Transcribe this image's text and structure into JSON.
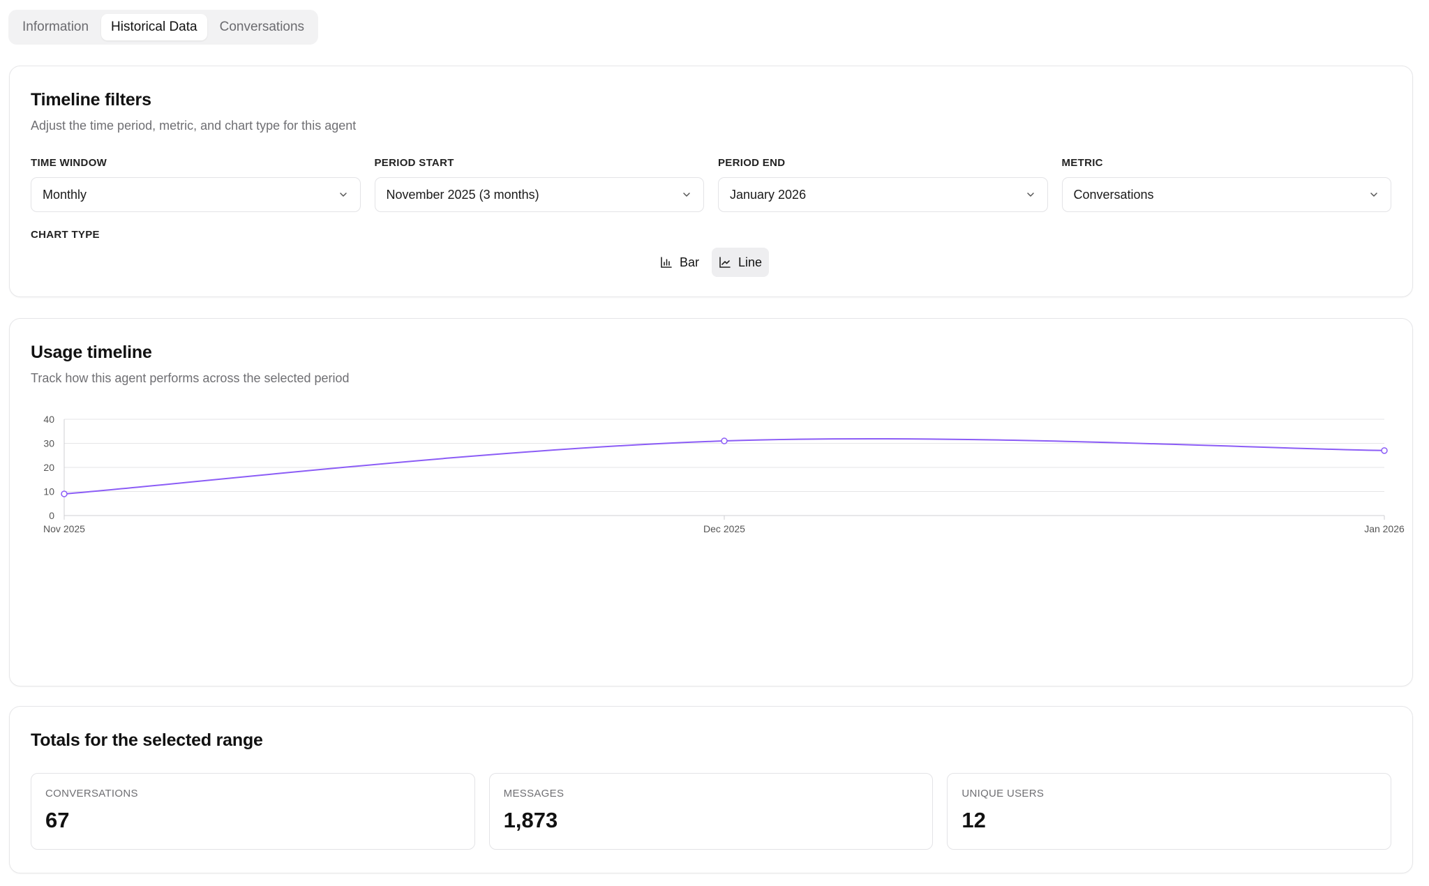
{
  "tabs": [
    {
      "label": "Information",
      "active": false
    },
    {
      "label": "Historical Data",
      "active": true
    },
    {
      "label": "Conversations",
      "active": false
    }
  ],
  "filters_card": {
    "title": "Timeline filters",
    "subtitle": "Adjust the time period, metric, and chart type for this agent",
    "filters": [
      {
        "label": "TIME WINDOW",
        "value": "Monthly"
      },
      {
        "label": "PERIOD START",
        "value": "November 2025 (3 months)"
      },
      {
        "label": "PERIOD END",
        "value": "January 2026"
      },
      {
        "label": "METRIC",
        "value": "Conversations"
      }
    ],
    "chart_type_label": "CHART TYPE",
    "chart_types": [
      {
        "label": "Bar",
        "icon": "bar-chart-icon",
        "active": false
      },
      {
        "label": "Line",
        "icon": "line-chart-icon",
        "active": true
      }
    ]
  },
  "timeline_card": {
    "title": "Usage timeline",
    "subtitle": "Track how this agent performs across the selected period"
  },
  "totals_card": {
    "title": "Totals for the selected range",
    "stats": [
      {
        "label": "CONVERSATIONS",
        "value": "67"
      },
      {
        "label": "MESSAGES",
        "value": "1,873"
      },
      {
        "label": "UNIQUE USERS",
        "value": "12"
      }
    ]
  },
  "colors": {
    "line": "#8b5cf6",
    "grid": "#e5e5e7",
    "axis_text": "#555555"
  },
  "chart_data": {
    "type": "line",
    "categories": [
      "Nov 2025",
      "Dec 2025",
      "Jan 2026"
    ],
    "series": [
      {
        "values": [
          9,
          31,
          27
        ]
      }
    ],
    "ylim": [
      0,
      40
    ],
    "yticks": [
      0,
      10,
      20,
      30,
      40
    ],
    "grid": true
  }
}
